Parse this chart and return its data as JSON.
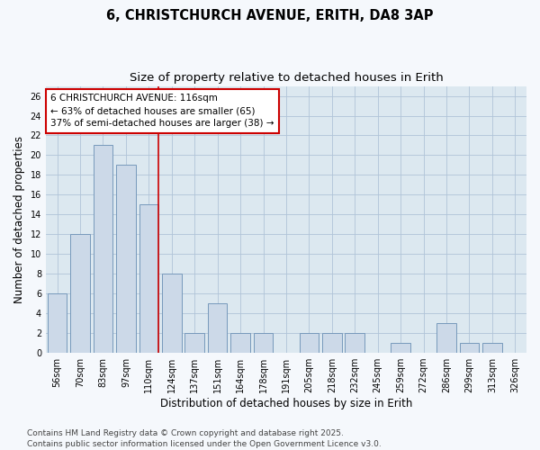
{
  "title1": "6, CHRISTCHURCH AVENUE, ERITH, DA8 3AP",
  "title2": "Size of property relative to detached houses in Erith",
  "xlabel": "Distribution of detached houses by size in Erith",
  "ylabel": "Number of detached properties",
  "categories": [
    "56sqm",
    "70sqm",
    "83sqm",
    "97sqm",
    "110sqm",
    "124sqm",
    "137sqm",
    "151sqm",
    "164sqm",
    "178sqm",
    "191sqm",
    "205sqm",
    "218sqm",
    "232sqm",
    "245sqm",
    "259sqm",
    "272sqm",
    "286sqm",
    "299sqm",
    "313sqm",
    "326sqm"
  ],
  "values": [
    6,
    12,
    21,
    19,
    15,
    8,
    2,
    5,
    2,
    2,
    0,
    2,
    2,
    2,
    0,
    1,
    0,
    3,
    1,
    1,
    0
  ],
  "bar_color": "#ccd9e8",
  "bar_edge_color": "#7799bb",
  "highlight_index": 4,
  "highlight_line_color": "#cc0000",
  "annotation_box_color": "#ffffff",
  "annotation_box_edge": "#cc0000",
  "annotation_text": "6 CHRISTCHURCH AVENUE: 116sqm\n← 63% of detached houses are smaller (65)\n37% of semi-detached houses are larger (38) →",
  "ylim": [
    0,
    27
  ],
  "yticks": [
    0,
    2,
    4,
    6,
    8,
    10,
    12,
    14,
    16,
    18,
    20,
    22,
    24,
    26
  ],
  "grid_color": "#b0c4d8",
  "bg_color": "#dce8f0",
  "fig_bg_color": "#f5f8fc",
  "footer": "Contains HM Land Registry data © Crown copyright and database right 2025.\nContains public sector information licensed under the Open Government Licence v3.0.",
  "title_fontsize": 10.5,
  "subtitle_fontsize": 9.5,
  "axis_label_fontsize": 8.5,
  "tick_fontsize": 7,
  "annotation_fontsize": 7.5,
  "footer_fontsize": 6.5
}
